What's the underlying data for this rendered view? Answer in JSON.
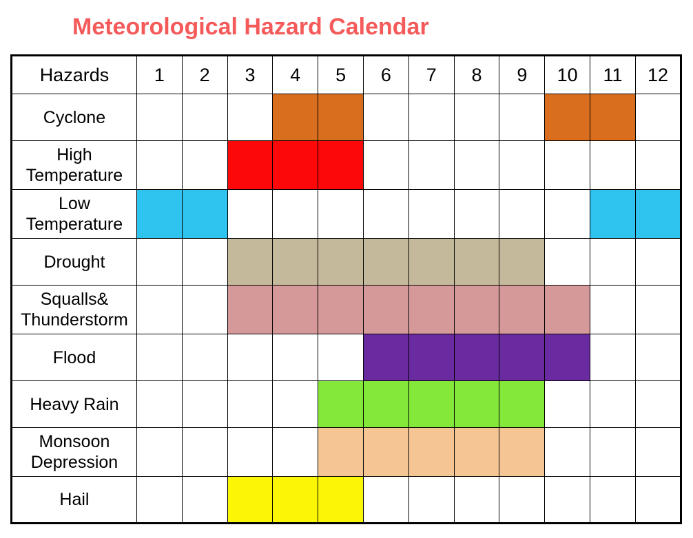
{
  "title": "Meteorological Hazard Calendar",
  "title_color": "#f55a5a",
  "title_fontsize": 34,
  "chart": {
    "type": "table",
    "header_label": "Hazards",
    "months": [
      "1",
      "2",
      "3",
      "4",
      "5",
      "6",
      "7",
      "8",
      "9",
      "10",
      "11",
      "12"
    ],
    "background_color": "#ffffff",
    "border_color": "#000000",
    "hazards": [
      {
        "name": "Cyclone",
        "color": "#d96f1e",
        "cells": [
          false,
          false,
          false,
          true,
          true,
          false,
          false,
          false,
          false,
          true,
          true,
          false
        ]
      },
      {
        "name": "High Temperature",
        "color": "#fc0808",
        "cells": [
          false,
          false,
          true,
          true,
          true,
          false,
          false,
          false,
          false,
          false,
          false,
          false
        ]
      },
      {
        "name": "Low Temperature",
        "color": "#2fc4f0",
        "cells": [
          true,
          true,
          false,
          false,
          false,
          false,
          false,
          false,
          false,
          false,
          true,
          true
        ]
      },
      {
        "name": "Drought",
        "color": "#c4b99a",
        "cells": [
          false,
          false,
          true,
          true,
          true,
          true,
          true,
          true,
          true,
          false,
          false,
          false
        ]
      },
      {
        "name": "Squalls& Thunderstorm",
        "color": "#d59999",
        "cells": [
          false,
          false,
          true,
          true,
          true,
          true,
          true,
          true,
          true,
          true,
          false,
          false
        ]
      },
      {
        "name": "Flood",
        "color": "#6a2aa0",
        "cells": [
          false,
          false,
          false,
          false,
          false,
          true,
          true,
          true,
          true,
          true,
          false,
          false
        ]
      },
      {
        "name": "Heavy Rain",
        "color": "#84e83a",
        "cells": [
          false,
          false,
          false,
          false,
          true,
          true,
          true,
          true,
          true,
          false,
          false,
          false
        ]
      },
      {
        "name": "Monsoon Depression",
        "color": "#f5c693",
        "cells": [
          false,
          false,
          false,
          false,
          true,
          true,
          true,
          true,
          true,
          false,
          false,
          false
        ]
      },
      {
        "name": "Hail",
        "color": "#faf606",
        "cells": [
          false,
          false,
          true,
          true,
          true,
          false,
          false,
          false,
          false,
          false,
          false,
          false
        ]
      }
    ]
  }
}
